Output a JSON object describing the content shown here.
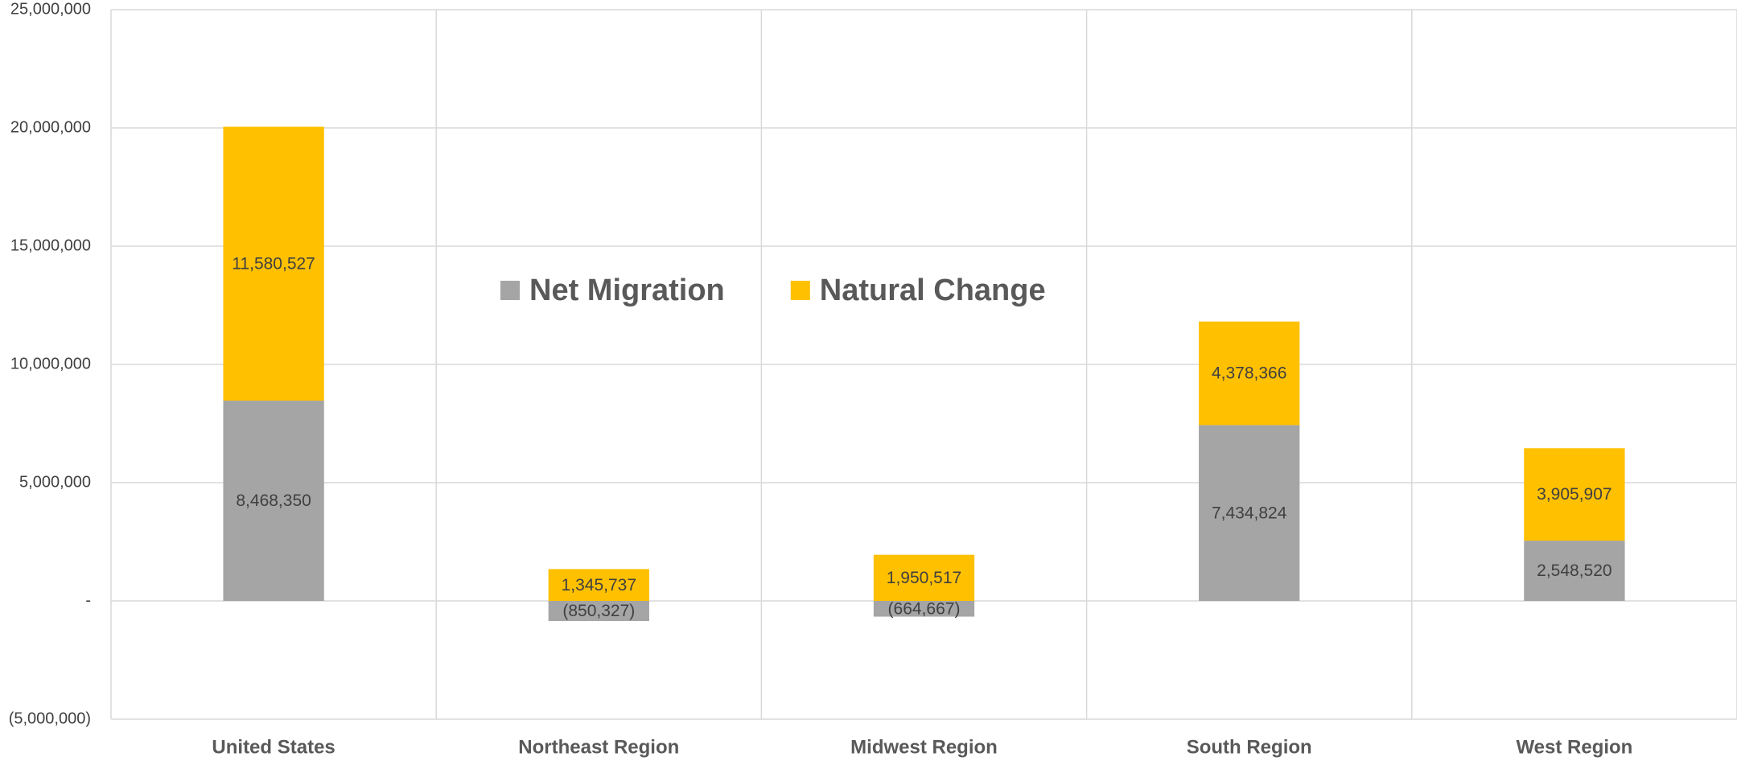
{
  "chart_data": {
    "type": "stacked_bar",
    "categories": [
      "United States",
      "Northeast Region",
      "Midwest Region",
      "South Region",
      "West Region"
    ],
    "series": [
      {
        "name": "Net Migration",
        "color": "#a5a5a5",
        "values": [
          8468350,
          -850327,
          -664667,
          7434824,
          2548520
        ],
        "value_labels": [
          "8,468,350",
          "(850,327)",
          "(664,667)",
          "7,434,824",
          "2,548,520"
        ]
      },
      {
        "name": "Natural Change",
        "color": "#ffc000",
        "values": [
          11580527,
          1345737,
          1950517,
          4378366,
          3905907
        ],
        "value_labels": [
          "11,580,527",
          "1,345,737",
          "1,950,517",
          "4,378,366",
          "3,905,907"
        ]
      }
    ],
    "ylim": [
      -5000000,
      25000000
    ],
    "yticks": [
      {
        "value": -5000000,
        "label": "(5,000,000)"
      },
      {
        "value": 0,
        "label": "-"
      },
      {
        "value": 5000000,
        "label": "5,000,000"
      },
      {
        "value": 10000000,
        "label": "10,000,000"
      },
      {
        "value": 15000000,
        "label": "15,000,000"
      },
      {
        "value": 20000000,
        "label": "20,000,000"
      },
      {
        "value": 25000000,
        "label": "25,000,000"
      }
    ],
    "grid": true,
    "legend": "top"
  }
}
